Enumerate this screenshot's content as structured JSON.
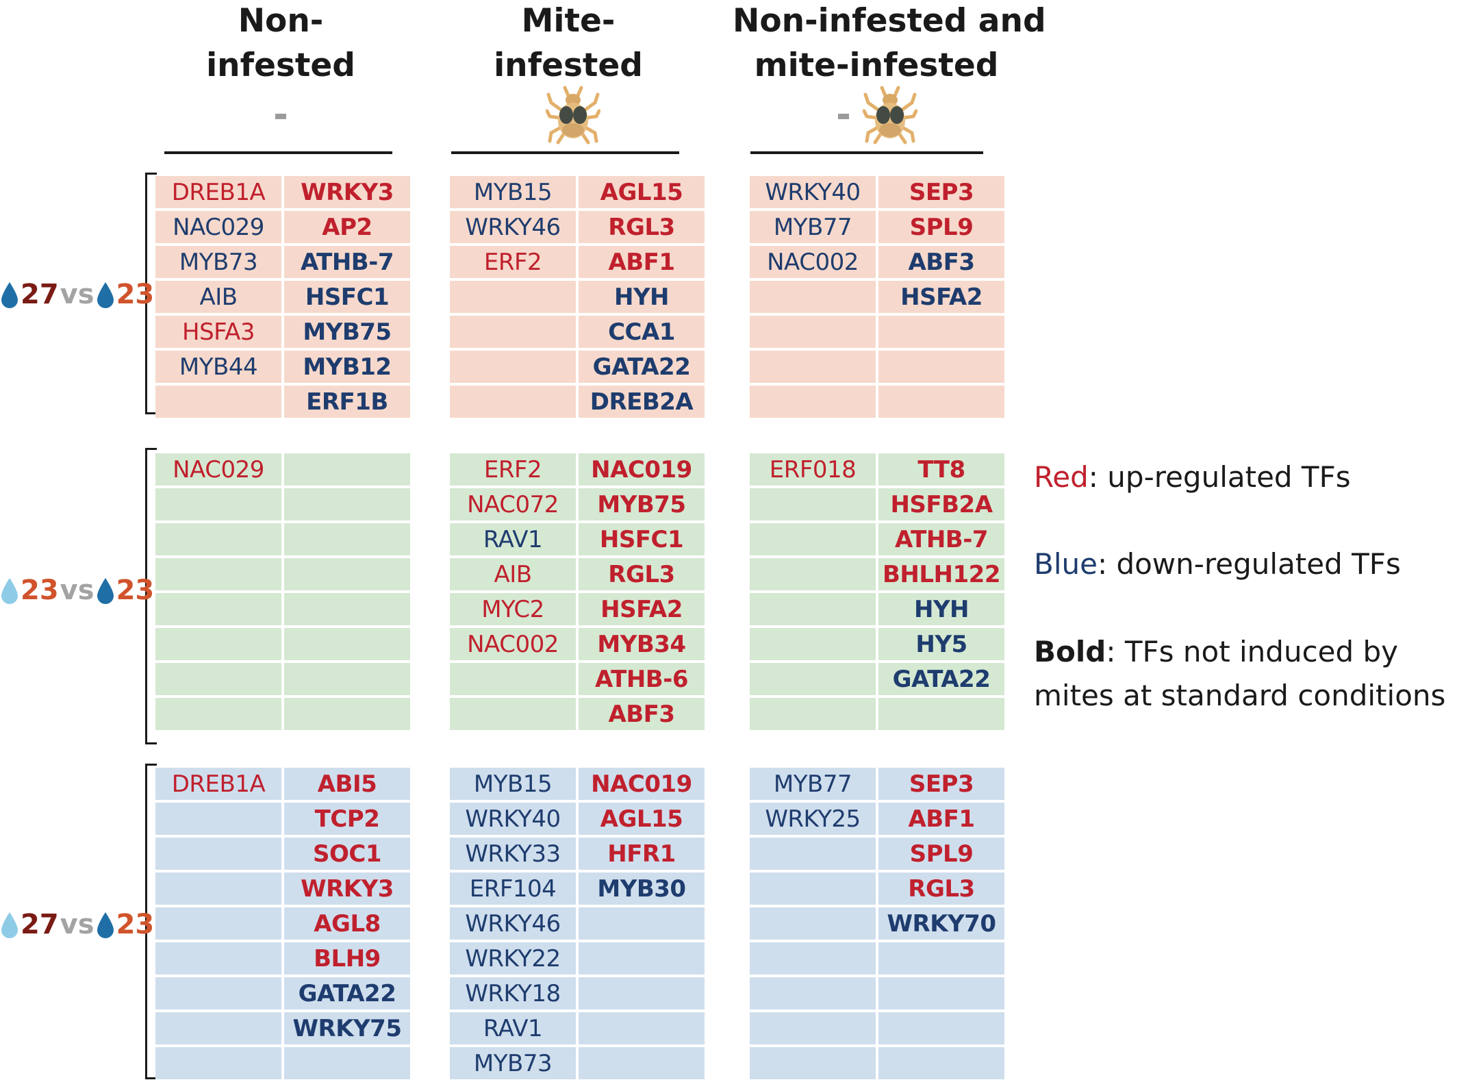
{
  "columns": [
    {
      "line1": "Non-",
      "line2": "infested",
      "marker": "-"
    },
    {
      "line1": "Mite-",
      "line2": "infested",
      "marker": "mite-icon"
    },
    {
      "line1": "Non-infested and",
      "line2": "mite-infested",
      "marker": "- mite-icon"
    }
  ],
  "rows": [
    {
      "label": {
        "drop1": "dark-drop",
        "temp1": "27",
        "vs": "vs",
        "drop2": "dark-drop",
        "temp2": "23"
      },
      "panels": [
        {
          "left": [
            {
              "t": "DREB1A",
              "c": "red",
              "b": false
            },
            {
              "t": "NAC029",
              "c": "blue",
              "b": false
            },
            {
              "t": "MYB73",
              "c": "blue",
              "b": false
            },
            {
              "t": "AIB",
              "c": "blue",
              "b": false
            },
            {
              "t": "HSFA3",
              "c": "red",
              "b": false
            },
            {
              "t": "MYB44",
              "c": "blue",
              "b": false
            },
            {
              "t": "",
              "c": "blue",
              "b": false
            }
          ],
          "right": [
            {
              "t": "WRKY3",
              "c": "red",
              "b": true
            },
            {
              "t": "AP2",
              "c": "red",
              "b": true
            },
            {
              "t": "ATHB-7",
              "c": "blue",
              "b": true
            },
            {
              "t": "HSFC1",
              "c": "blue",
              "b": true
            },
            {
              "t": "MYB75",
              "c": "blue",
              "b": true
            },
            {
              "t": "MYB12",
              "c": "blue",
              "b": true
            },
            {
              "t": "ERF1B",
              "c": "blue",
              "b": true
            }
          ]
        },
        {
          "left": [
            {
              "t": "MYB15",
              "c": "blue",
              "b": false
            },
            {
              "t": "WRKY46",
              "c": "blue",
              "b": false
            },
            {
              "t": "ERF2",
              "c": "red",
              "b": false
            },
            {
              "t": "",
              "c": "blue",
              "b": false
            },
            {
              "t": "",
              "c": "blue",
              "b": false
            },
            {
              "t": "",
              "c": "blue",
              "b": false
            },
            {
              "t": "",
              "c": "blue",
              "b": false
            }
          ],
          "right": [
            {
              "t": "AGL15",
              "c": "red",
              "b": true
            },
            {
              "t": "RGL3",
              "c": "red",
              "b": true
            },
            {
              "t": "ABF1",
              "c": "red",
              "b": true
            },
            {
              "t": "HYH",
              "c": "blue",
              "b": true
            },
            {
              "t": "CCA1",
              "c": "blue",
              "b": true
            },
            {
              "t": "GATA22",
              "c": "blue",
              "b": true
            },
            {
              "t": "DREB2A",
              "c": "blue",
              "b": true
            }
          ]
        },
        {
          "left": [
            {
              "t": "WRKY40",
              "c": "blue",
              "b": false
            },
            {
              "t": "MYB77",
              "c": "blue",
              "b": false
            },
            {
              "t": "NAC002",
              "c": "blue",
              "b": false
            },
            {
              "t": "",
              "c": "blue",
              "b": false
            },
            {
              "t": "",
              "c": "blue",
              "b": false
            },
            {
              "t": "",
              "c": "blue",
              "b": false
            },
            {
              "t": "",
              "c": "blue",
              "b": false
            }
          ],
          "right": [
            {
              "t": "SEP3",
              "c": "red",
              "b": true
            },
            {
              "t": "SPL9",
              "c": "red",
              "b": true
            },
            {
              "t": "ABF3",
              "c": "blue",
              "b": true
            },
            {
              "t": "HSFA2",
              "c": "blue",
              "b": true
            },
            {
              "t": "",
              "c": "blue",
              "b": true
            },
            {
              "t": "",
              "c": "blue",
              "b": true
            },
            {
              "t": "",
              "c": "blue",
              "b": true
            }
          ]
        }
      ]
    },
    {
      "label": {
        "drop1": "light-drop",
        "temp1": "23",
        "vs": "vs",
        "drop2": "dark-drop",
        "temp2": "23"
      },
      "panels": [
        {
          "left": [
            {
              "t": "NAC029",
              "c": "red",
              "b": false
            },
            {
              "t": "",
              "c": "blue",
              "b": false
            },
            {
              "t": "",
              "c": "blue",
              "b": false
            },
            {
              "t": "",
              "c": "blue",
              "b": false
            },
            {
              "t": "",
              "c": "blue",
              "b": false
            },
            {
              "t": "",
              "c": "blue",
              "b": false
            },
            {
              "t": "",
              "c": "blue",
              "b": false
            },
            {
              "t": "",
              "c": "blue",
              "b": false
            }
          ],
          "right": [
            {
              "t": "",
              "c": "blue",
              "b": true
            },
            {
              "t": "",
              "c": "blue",
              "b": true
            },
            {
              "t": "",
              "c": "blue",
              "b": true
            },
            {
              "t": "",
              "c": "blue",
              "b": true
            },
            {
              "t": "",
              "c": "blue",
              "b": true
            },
            {
              "t": "",
              "c": "blue",
              "b": true
            },
            {
              "t": "",
              "c": "blue",
              "b": true
            },
            {
              "t": "",
              "c": "blue",
              "b": true
            }
          ]
        },
        {
          "left": [
            {
              "t": "ERF2",
              "c": "red",
              "b": false
            },
            {
              "t": "NAC072",
              "c": "red",
              "b": false
            },
            {
              "t": "RAV1",
              "c": "blue",
              "b": false
            },
            {
              "t": "AIB",
              "c": "red",
              "b": false
            },
            {
              "t": "MYC2",
              "c": "red",
              "b": false
            },
            {
              "t": "NAC002",
              "c": "red",
              "b": false
            },
            {
              "t": "",
              "c": "blue",
              "b": false
            },
            {
              "t": "",
              "c": "blue",
              "b": false
            }
          ],
          "right": [
            {
              "t": "NAC019",
              "c": "red",
              "b": true
            },
            {
              "t": "MYB75",
              "c": "red",
              "b": true
            },
            {
              "t": "HSFC1",
              "c": "red",
              "b": true
            },
            {
              "t": "RGL3",
              "c": "red",
              "b": true
            },
            {
              "t": "HSFA2",
              "c": "red",
              "b": true
            },
            {
              "t": "MYB34",
              "c": "red",
              "b": true
            },
            {
              "t": "ATHB-6",
              "c": "red",
              "b": true
            },
            {
              "t": "ABF3",
              "c": "red",
              "b": true
            }
          ]
        },
        {
          "left": [
            {
              "t": "ERF018",
              "c": "red",
              "b": false
            },
            {
              "t": "",
              "c": "blue",
              "b": false
            },
            {
              "t": "",
              "c": "blue",
              "b": false
            },
            {
              "t": "",
              "c": "blue",
              "b": false
            },
            {
              "t": "",
              "c": "blue",
              "b": false
            },
            {
              "t": "",
              "c": "blue",
              "b": false
            },
            {
              "t": "",
              "c": "blue",
              "b": false
            },
            {
              "t": "",
              "c": "blue",
              "b": false
            }
          ],
          "right": [
            {
              "t": "TT8",
              "c": "red",
              "b": true
            },
            {
              "t": "HSFB2A",
              "c": "red",
              "b": true
            },
            {
              "t": "ATHB-7",
              "c": "red",
              "b": true
            },
            {
              "t": "BHLH122",
              "c": "red",
              "b": true
            },
            {
              "t": "HYH",
              "c": "blue",
              "b": true
            },
            {
              "t": "HY5",
              "c": "blue",
              "b": true
            },
            {
              "t": "GATA22",
              "c": "blue",
              "b": true
            },
            {
              "t": "",
              "c": "blue",
              "b": true
            }
          ]
        }
      ]
    },
    {
      "label": {
        "drop1": "light-drop",
        "temp1": "27",
        "vs": "vs",
        "drop2": "dark-drop",
        "temp2": "23"
      },
      "panels": [
        {
          "left": [
            {
              "t": "DREB1A",
              "c": "red",
              "b": false
            },
            {
              "t": "",
              "c": "blue",
              "b": false
            },
            {
              "t": "",
              "c": "blue",
              "b": false
            },
            {
              "t": "",
              "c": "blue",
              "b": false
            },
            {
              "t": "",
              "c": "blue",
              "b": false
            },
            {
              "t": "",
              "c": "blue",
              "b": false
            },
            {
              "t": "",
              "c": "blue",
              "b": false
            },
            {
              "t": "",
              "c": "blue",
              "b": false
            },
            {
              "t": "",
              "c": "blue",
              "b": false
            }
          ],
          "right": [
            {
              "t": "ABI5",
              "c": "red",
              "b": true
            },
            {
              "t": "TCP2",
              "c": "red",
              "b": true
            },
            {
              "t": "SOC1",
              "c": "red",
              "b": true
            },
            {
              "t": "WRKY3",
              "c": "red",
              "b": true
            },
            {
              "t": "AGL8",
              "c": "red",
              "b": true
            },
            {
              "t": "BLH9",
              "c": "red",
              "b": true
            },
            {
              "t": "GATA22",
              "c": "blue",
              "b": true
            },
            {
              "t": "WRKY75",
              "c": "blue",
              "b": true
            },
            {
              "t": "",
              "c": "blue",
              "b": true
            }
          ]
        },
        {
          "left": [
            {
              "t": "MYB15",
              "c": "blue",
              "b": false
            },
            {
              "t": "WRKY40",
              "c": "blue",
              "b": false
            },
            {
              "t": "WRKY33",
              "c": "blue",
              "b": false
            },
            {
              "t": "ERF104",
              "c": "blue",
              "b": false
            },
            {
              "t": "WRKY46",
              "c": "blue",
              "b": false
            },
            {
              "t": "WRKY22",
              "c": "blue",
              "b": false
            },
            {
              "t": "WRKY18",
              "c": "blue",
              "b": false
            },
            {
              "t": "RAV1",
              "c": "blue",
              "b": false
            },
            {
              "t": "MYB73",
              "c": "blue",
              "b": false
            }
          ],
          "right": [
            {
              "t": "NAC019",
              "c": "red",
              "b": true
            },
            {
              "t": "AGL15",
              "c": "red",
              "b": true
            },
            {
              "t": "HFR1",
              "c": "red",
              "b": true
            },
            {
              "t": "MYB30",
              "c": "blue",
              "b": true
            },
            {
              "t": "",
              "c": "blue",
              "b": true
            },
            {
              "t": "",
              "c": "blue",
              "b": true
            },
            {
              "t": "",
              "c": "blue",
              "b": true
            },
            {
              "t": "",
              "c": "blue",
              "b": true
            },
            {
              "t": "",
              "c": "blue",
              "b": true
            }
          ]
        },
        {
          "left": [
            {
              "t": "MYB77",
              "c": "blue",
              "b": false
            },
            {
              "t": "WRKY25",
              "c": "blue",
              "b": false
            },
            {
              "t": "",
              "c": "blue",
              "b": false
            },
            {
              "t": "",
              "c": "blue",
              "b": false
            },
            {
              "t": "",
              "c": "blue",
              "b": false
            },
            {
              "t": "",
              "c": "blue",
              "b": false
            },
            {
              "t": "",
              "c": "blue",
              "b": false
            },
            {
              "t": "",
              "c": "blue",
              "b": false
            },
            {
              "t": "",
              "c": "blue",
              "b": false
            }
          ],
          "right": [
            {
              "t": "SEP3",
              "c": "red",
              "b": true
            },
            {
              "t": "ABF1",
              "c": "red",
              "b": true
            },
            {
              "t": "SPL9",
              "c": "red",
              "b": true
            },
            {
              "t": "RGL3",
              "c": "red",
              "b": true
            },
            {
              "t": "WRKY70",
              "c": "blue",
              "b": true
            },
            {
              "t": "",
              "c": "blue",
              "b": true
            },
            {
              "t": "",
              "c": "blue",
              "b": true
            },
            {
              "t": "",
              "c": "blue",
              "b": true
            },
            {
              "t": "",
              "c": "blue",
              "b": true
            }
          ]
        }
      ]
    }
  ],
  "legend": {
    "red_key": "Red",
    "red_text": ": up-regulated TFs",
    "blue_key": "Blue",
    "blue_text": ": down-regulated TFs",
    "bold_key": "Bold",
    "bold_text1": ": TFs not induced by",
    "bold_text2": "mites at standard conditions"
  },
  "colors": {
    "up": "#c0202d",
    "down": "#1e3c6e",
    "row1_bg": "#f6d9cc",
    "row2_bg": "#d5e8d2",
    "row3_bg": "#cfdeed",
    "dark_drop": "#1f6fa6",
    "light_drop": "#8ecbe6"
  }
}
